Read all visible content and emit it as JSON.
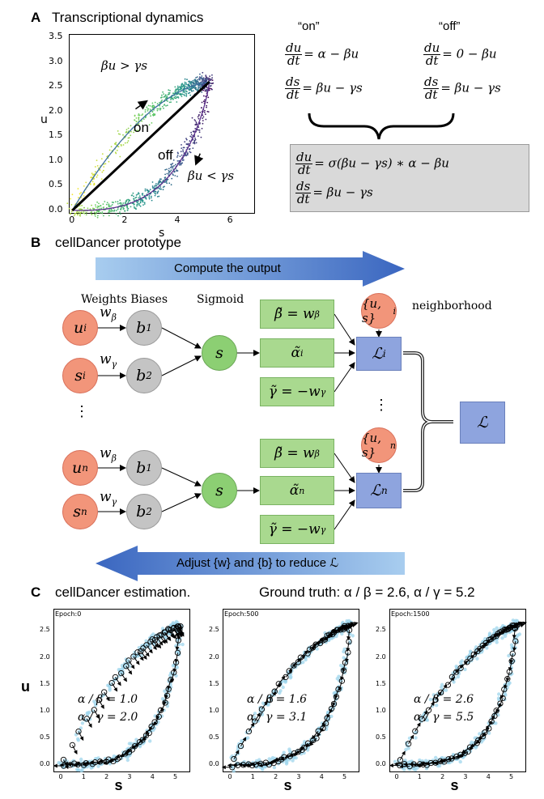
{
  "panel_a": {
    "letter": "A",
    "title": "Transcriptional dynamics",
    "plot": {
      "xlabel": "s",
      "ylabel": "u",
      "xticks": [
        "0",
        "2",
        "4",
        "6"
      ],
      "yticks": [
        "0.0",
        "0.5",
        "1.0",
        "1.5",
        "2.0",
        "2.5",
        "3.0",
        "3.5"
      ],
      "label_upper": "βu > γs",
      "label_lower": "βu < γs",
      "label_on": "on",
      "label_off": "off"
    },
    "eq_on_header": "“on”",
    "eq_off_header": "“off”",
    "eq_on": {
      "du_rhs": "= α − βu",
      "ds_rhs": "= βu − γs"
    },
    "eq_off": {
      "du_rhs": "= 0 − βu",
      "ds_rhs": "= βu − γs"
    },
    "eq_combined": {
      "du_rhs": "= σ(βu − γs) ∗ α − βu",
      "ds_rhs": "= βu − γs"
    },
    "frac": {
      "du_num": "du",
      "ds_num": "ds",
      "den": "dt"
    }
  },
  "panel_b": {
    "letter": "B",
    "title": "cellDancer prototype",
    "compute_label": "Compute the output",
    "adjust_label": "Adjust {w} and {b} to reduce ℒ",
    "header_weights": "Weights Biases",
    "header_sigmoid": "Sigmoid",
    "header_neighborhood": "neighborhood",
    "vdots": "⋮",
    "row1": {
      "u": "u",
      "u_sub": "i",
      "s": "s",
      "s_sub": "i",
      "w_beta": "w",
      "w_beta_sub": "β",
      "w_gamma": "w",
      "w_gamma_sub": "γ",
      "b1": "b",
      "b1_sub": "1",
      "b2": "b",
      "b2_sub": "2",
      "sig": "s",
      "beta_box": "β̃ = w",
      "beta_box_sub": "β",
      "alpha_box": "α̃",
      "alpha_box_sup": "i",
      "gamma_box": "γ̃ = −w",
      "gamma_box_sub": "γ",
      "nb": "{u, s}",
      "nb_sub": "i",
      "loss": "ℒ",
      "loss_sup": "i"
    },
    "row2": {
      "u": "u",
      "u_sub": "n",
      "s": "s",
      "s_sub": "n",
      "w_beta": "w",
      "w_beta_sub": "β",
      "w_gamma": "w",
      "w_gamma_sub": "γ",
      "b1": "b",
      "b1_sub": "1",
      "b2": "b",
      "b2_sub": "2",
      "sig": "s",
      "beta_box": "β̃ =  w",
      "beta_box_sub": "β",
      "alpha_box": "α̃",
      "alpha_box_sup": "n",
      "gamma_box": "γ̃ = −w",
      "gamma_box_sub": "γ",
      "nb": "{u, s}",
      "nb_sub": "n",
      "loss": "ℒ",
      "loss_sup": "n"
    },
    "total_loss": "ℒ"
  },
  "panel_c": {
    "letter": "C",
    "title": "cellDancer estimation.",
    "ground_truth": "Ground truth: α / β = 2.6,   α / γ = 5.2",
    "ylabel": "u",
    "xlabel": "s",
    "xticks": [
      "0",
      "1",
      "2",
      "3",
      "4",
      "5"
    ],
    "yticks": [
      "0.0",
      "0.5",
      "1.0",
      "1.5",
      "2.0",
      "2.5"
    ],
    "plots": [
      {
        "epoch": "Epoch:0",
        "ab": "α / β = 1.0",
        "ag": "α / γ = 2.0"
      },
      {
        "epoch": "Epoch:500",
        "ab": "α / β = 1.6",
        "ag": "α / γ = 3.1"
      },
      {
        "epoch": "Epoch:1500",
        "ab": "α / β = 2.6",
        "ag": "α / γ = 5.5"
      }
    ]
  },
  "colors": {
    "red_node": "#f2957a",
    "gray_node": "#c4c4c4",
    "green_node": "#8ccf73",
    "green_box": "#a9d98f",
    "blue_box": "#8ea4de",
    "arrow_blue": "#4472c4",
    "scatter_blue": "#9fd6ec"
  }
}
